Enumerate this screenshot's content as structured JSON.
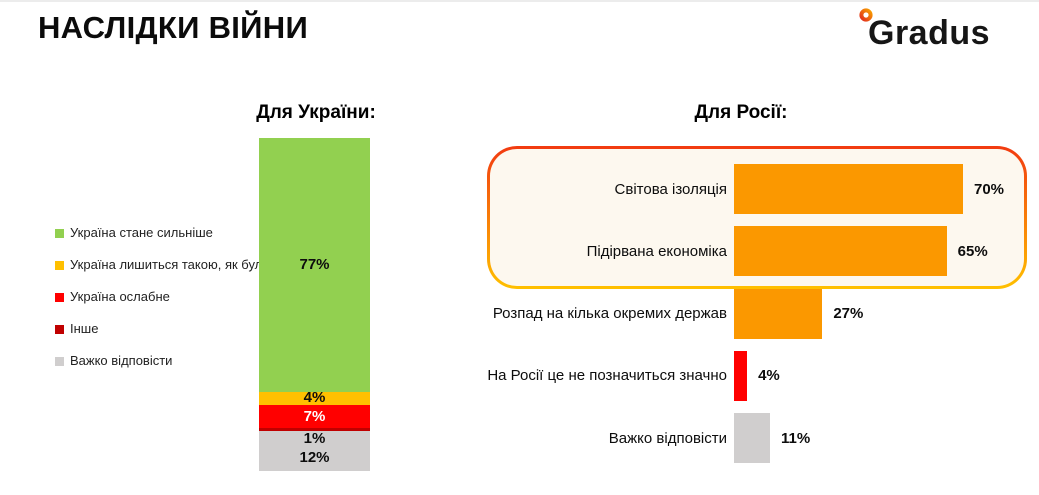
{
  "page": {
    "title": "НАСЛІДКИ ВІЙНИ",
    "logo_text": "Gradus",
    "background": "#FFFFFF"
  },
  "chart_data": [
    {
      "type": "bar",
      "subtype": "stacked_column",
      "title": "Для України:",
      "legend_position": "left",
      "unit": "%",
      "segments": [
        {
          "label": "Україна стане сильніше",
          "value": 77,
          "value_label": "77%",
          "color": "#92D050"
        },
        {
          "label": "Україна лишиться такою, як була",
          "value": 4,
          "value_label": "4%",
          "color": "#FFC000"
        },
        {
          "label": "Україна ослабне",
          "value": 7,
          "value_label": "7%",
          "color": "#FF0000",
          "text_color": "#FFFFFF"
        },
        {
          "label": "Інше",
          "value": 1,
          "value_label": "1%",
          "color": "#C00000"
        },
        {
          "label": "Важко відповісти",
          "value": 12,
          "value_label": "12%",
          "color": "#D0CECE"
        }
      ]
    },
    {
      "type": "bar",
      "subtype": "horizontal",
      "title": "Для Росії:",
      "unit": "%",
      "xlim": [
        0,
        70
      ],
      "categories": [
        "Світова ізоляція",
        "Підірвана економіка",
        "Розпад на кілька окремих держав",
        "На Росії це не позначиться значно",
        "Важко відповісти"
      ],
      "values": [
        70,
        65,
        27,
        4,
        11
      ],
      "value_labels": [
        "70%",
        "65%",
        "27%",
        "4%",
        "11%"
      ],
      "colors": [
        "#FB9800",
        "#FB9800",
        "#FB9800",
        "#FF0000",
        "#D0CECE"
      ],
      "highlight": {
        "rows": [
          "Світова ізоляція",
          "Підірвана економіка"
        ],
        "fill": "#FDF8EF",
        "border_gradient": [
          "#F23A10",
          "#FFC000"
        ]
      }
    }
  ]
}
